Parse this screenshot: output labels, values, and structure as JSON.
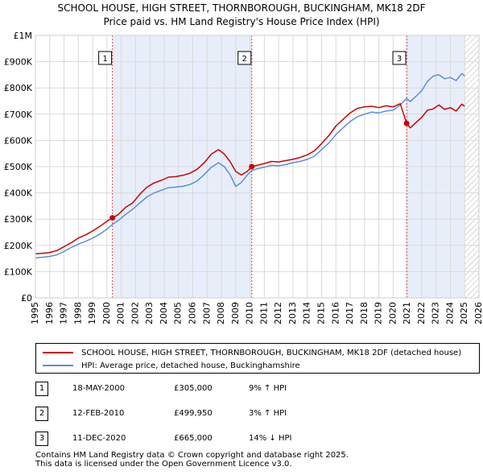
{
  "title_line1": "SCHOOL HOUSE, HIGH STREET, THORNBOROUGH, BUCKINGHAM, MK18 2DF",
  "title_line2": "Price paid vs. HM Land Registry's House Price Index (HPI)",
  "legend": {
    "property_label": "SCHOOL HOUSE, HIGH STREET, THORNBOROUGH, BUCKINGHAM, MK18 2DF (detached house)",
    "hpi_label": "HPI: Average price, detached house, Buckinghamshire"
  },
  "sales": [
    {
      "num": "1",
      "date": "18-MAY-2000",
      "price": "£305,000",
      "hpi": "9% ↑ HPI"
    },
    {
      "num": "2",
      "date": "12-FEB-2010",
      "price": "£499,950",
      "hpi": "3% ↑ HPI"
    },
    {
      "num": "3",
      "date": "11-DEC-2020",
      "price": "£665,000",
      "hpi": "14% ↓ HPI"
    }
  ],
  "footer_line1": "Contains HM Land Registry data © Crown copyright and database right 2025.",
  "footer_line2": "This data is licensed under the Open Government Licence v3.0.",
  "colors": {
    "property": "#cc0000",
    "hpi": "#5b8fd6",
    "shade": "#e8eef9",
    "grid": "#d9d9d9"
  },
  "chart_data": {
    "type": "line",
    "title": "SCHOOL HOUSE, HIGH STREET, THORNBOROUGH, BUCKINGHAM, MK18 2DF",
    "subtitle": "Price paid vs. HM Land Registry's House Price Index (HPI)",
    "xlabel": "",
    "ylabel": "",
    "xlim": [
      1995,
      2026
    ],
    "ylim": [
      0,
      1000000
    ],
    "x_ticks": [
      1995,
      1996,
      1997,
      1998,
      1999,
      2000,
      2001,
      2002,
      2003,
      2004,
      2005,
      2006,
      2007,
      2008,
      2009,
      2010,
      2011,
      2012,
      2013,
      2014,
      2015,
      2016,
      2017,
      2018,
      2019,
      2020,
      2021,
      2022,
      2023,
      2024,
      2025,
      2026
    ],
    "y_ticks": [
      {
        "value": 0,
        "label": "£0"
      },
      {
        "value": 100000,
        "label": "£100K"
      },
      {
        "value": 200000,
        "label": "£200K"
      },
      {
        "value": 300000,
        "label": "£300K"
      },
      {
        "value": 400000,
        "label": "£400K"
      },
      {
        "value": 500000,
        "label": "£500K"
      },
      {
        "value": 600000,
        "label": "£600K"
      },
      {
        "value": 700000,
        "label": "£700K"
      },
      {
        "value": 800000,
        "label": "£800K"
      },
      {
        "value": 900000,
        "label": "£900K"
      },
      {
        "value": 1000000,
        "label": "£1M"
      }
    ],
    "grid": true,
    "shaded_ranges": [
      [
        2000.38,
        2010.12
      ],
      [
        2020.94,
        2025.0
      ]
    ],
    "hatched_range": [
      2025.0,
      2026.0
    ],
    "series": [
      {
        "name": "SCHOOL HOUSE, HIGH STREET, THORNBOROUGH, BUCKINGHAM, MK18 2DF (detached house)",
        "color": "#cc0000",
        "x": [
          1995.0,
          1995.5,
          1996.0,
          1996.5,
          1997.0,
          1997.5,
          1998.0,
          1998.5,
          1999.0,
          1999.5,
          2000.0,
          2000.38,
          2000.8,
          2001.3,
          2001.8,
          2002.3,
          2002.8,
          2003.3,
          2003.8,
          2004.3,
          2004.8,
          2005.3,
          2005.8,
          2006.3,
          2006.8,
          2007.3,
          2007.8,
          2008.2,
          2008.6,
          2009.0,
          2009.4,
          2009.8,
          2010.12,
          2010.5,
          2011.0,
          2011.5,
          2012.0,
          2012.5,
          2013.0,
          2013.5,
          2014.0,
          2014.5,
          2015.0,
          2015.5,
          2016.0,
          2016.5,
          2017.0,
          2017.5,
          2018.0,
          2018.5,
          2019.0,
          2019.5,
          2020.0,
          2020.5,
          2020.94,
          2021.2,
          2021.6,
          2022.0,
          2022.4,
          2022.8,
          2023.2,
          2023.6,
          2024.0,
          2024.4,
          2024.8,
          2025.0
        ],
        "y": [
          168000,
          170000,
          173000,
          180000,
          195000,
          210000,
          228000,
          240000,
          255000,
          272000,
          292000,
          305000,
          318000,
          345000,
          362000,
          395000,
          422000,
          438000,
          448000,
          460000,
          462000,
          467000,
          475000,
          490000,
          515000,
          548000,
          565000,
          548000,
          520000,
          482000,
          468000,
          482000,
          499950,
          505000,
          512000,
          520000,
          518000,
          523000,
          528000,
          535000,
          545000,
          560000,
          588000,
          618000,
          655000,
          680000,
          705000,
          722000,
          728000,
          730000,
          725000,
          732000,
          728000,
          740000,
          665000,
          648000,
          668000,
          688000,
          715000,
          720000,
          735000,
          718000,
          725000,
          712000,
          738000,
          730000
        ]
      },
      {
        "name": "HPI: Average price, detached house, Buckinghamshire",
        "color": "#5b8fd6",
        "x": [
          1995.0,
          1995.5,
          1996.0,
          1996.5,
          1997.0,
          1997.5,
          1998.0,
          1998.5,
          1999.0,
          1999.5,
          2000.0,
          2000.38,
          2000.8,
          2001.3,
          2001.8,
          2002.3,
          2002.8,
          2003.3,
          2003.8,
          2004.3,
          2004.8,
          2005.3,
          2005.8,
          2006.3,
          2006.8,
          2007.3,
          2007.8,
          2008.2,
          2008.6,
          2009.0,
          2009.4,
          2009.8,
          2010.12,
          2010.5,
          2011.0,
          2011.5,
          2012.0,
          2012.5,
          2013.0,
          2013.5,
          2014.0,
          2014.5,
          2015.0,
          2015.5,
          2016.0,
          2016.5,
          2017.0,
          2017.5,
          2018.0,
          2018.5,
          2019.0,
          2019.5,
          2020.0,
          2020.5,
          2020.94,
          2021.2,
          2021.6,
          2022.0,
          2022.4,
          2022.8,
          2023.2,
          2023.6,
          2024.0,
          2024.4,
          2024.8,
          2025.0
        ],
        "y": [
          152000,
          155000,
          158000,
          164000,
          177000,
          192000,
          205000,
          215000,
          228000,
          243000,
          262000,
          280000,
          295000,
          318000,
          338000,
          362000,
          385000,
          400000,
          410000,
          420000,
          422000,
          425000,
          432000,
          445000,
          470000,
          498000,
          515000,
          500000,
          470000,
          425000,
          440000,
          468000,
          485000,
          492000,
          498000,
          505000,
          503000,
          508000,
          515000,
          520000,
          528000,
          540000,
          565000,
          590000,
          622000,
          648000,
          672000,
          690000,
          700000,
          708000,
          705000,
          712000,
          715000,
          735000,
          760000,
          748000,
          768000,
          790000,
          825000,
          845000,
          850000,
          835000,
          840000,
          828000,
          855000,
          845000
        ]
      }
    ],
    "sales": [
      {
        "label": "1",
        "x": 2000.38,
        "y": 305000
      },
      {
        "label": "2",
        "x": 2010.12,
        "y": 499950
      },
      {
        "label": "3",
        "x": 2020.94,
        "y": 665000
      }
    ]
  }
}
